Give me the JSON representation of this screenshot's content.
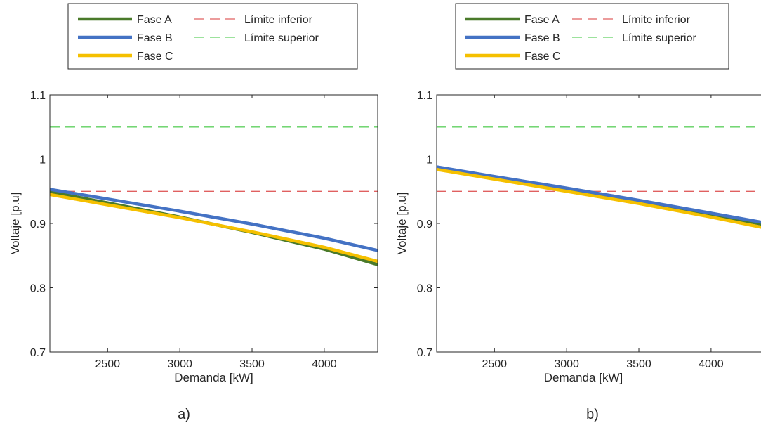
{
  "chart_data": [
    {
      "type": "line",
      "panel_label": "a)",
      "xlabel": "Demanda [kW]",
      "ylabel": "Voltaje [p.u]",
      "xlim": [
        2100,
        4370
      ],
      "ylim": [
        0.7,
        1.1
      ],
      "xticks": [
        2500,
        3000,
        3500,
        4000
      ],
      "yticks": [
        0.7,
        0.8,
        0.9,
        1,
        1.1
      ],
      "ytick_labels": [
        "0.7",
        "0.8",
        "0.9",
        "1",
        "1.1"
      ],
      "grid": false,
      "legend": {
        "placement": "top-outside",
        "columns": 2
      },
      "series": [
        {
          "name": "Fase A",
          "color": "#4a7a2a",
          "style": "solid",
          "x": [
            2100,
            2500,
            3000,
            3500,
            4000,
            4370
          ],
          "y": [
            0.949,
            0.932,
            0.91,
            0.886,
            0.86,
            0.836
          ]
        },
        {
          "name": "Fase B",
          "color": "#4472c4",
          "style": "solid",
          "x": [
            2100,
            2500,
            3000,
            3500,
            4000,
            4370
          ],
          "y": [
            0.953,
            0.938,
            0.919,
            0.899,
            0.877,
            0.858
          ]
        },
        {
          "name": "Fase C",
          "color": "#f5c000",
          "style": "solid",
          "x": [
            2100,
            2500,
            3000,
            3500,
            4000,
            4370
          ],
          "y": [
            0.945,
            0.929,
            0.909,
            0.887,
            0.863,
            0.841
          ]
        },
        {
          "name": "Límite inferior",
          "color": "#e06060",
          "style": "dashed",
          "x": [
            2100,
            4370
          ],
          "y": [
            0.95,
            0.95
          ]
        },
        {
          "name": "Límite superior",
          "color": "#60d060",
          "style": "dashed",
          "x": [
            2100,
            4370
          ],
          "y": [
            1.05,
            1.05
          ]
        }
      ]
    },
    {
      "type": "line",
      "panel_label": "b)",
      "xlabel": "Demanda [kW]",
      "ylabel": "Voltaje [p.u]",
      "xlim": [
        2100,
        4370
      ],
      "ylim": [
        0.7,
        1.1
      ],
      "xticks": [
        2500,
        3000,
        3500,
        4000
      ],
      "yticks": [
        0.7,
        0.8,
        0.9,
        1,
        1.1
      ],
      "ytick_labels": [
        "0.7",
        "0.8",
        "0.9",
        "1",
        "1.1"
      ],
      "grid": false,
      "legend": {
        "placement": "top-outside",
        "columns": 2
      },
      "series": [
        {
          "name": "Fase A",
          "color": "#4a7a2a",
          "style": "solid",
          "x": [
            2100,
            2500,
            3000,
            3500,
            4000,
            4370
          ],
          "y": [
            0.987,
            0.972,
            0.953,
            0.934,
            0.914,
            0.898
          ]
        },
        {
          "name": "Fase B",
          "color": "#4472c4",
          "style": "solid",
          "x": [
            2100,
            2500,
            3000,
            3500,
            4000,
            4370
          ],
          "y": [
            0.988,
            0.973,
            0.955,
            0.936,
            0.916,
            0.901
          ]
        },
        {
          "name": "Fase C",
          "color": "#f5c000",
          "style": "solid",
          "x": [
            2100,
            2500,
            3000,
            3500,
            4000,
            4370
          ],
          "y": [
            0.984,
            0.969,
            0.95,
            0.931,
            0.91,
            0.893
          ]
        },
        {
          "name": "Límite inferior",
          "color": "#e06060",
          "style": "dashed",
          "x": [
            2100,
            4370
          ],
          "y": [
            0.95,
            0.95
          ]
        },
        {
          "name": "Límite superior",
          "color": "#60d060",
          "style": "dashed",
          "x": [
            2100,
            4370
          ],
          "y": [
            1.05,
            1.05
          ]
        }
      ]
    }
  ]
}
